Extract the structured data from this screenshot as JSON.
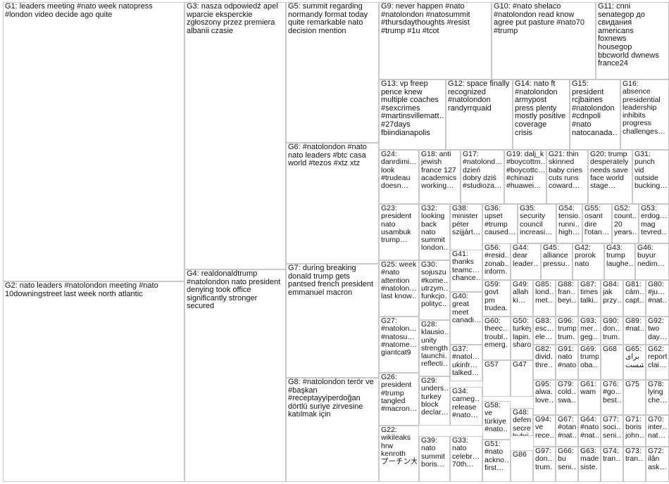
{
  "groups": [
    {
      "id": "G1",
      "lines": [
        "G1: leaders meeting #nato week natopress",
        "#london video decide ago quite"
      ]
    },
    {
      "id": "G2",
      "lines": [
        "G2: nato leaders #natolondon meeting #nato",
        "10downingstreet last week north atlantic"
      ]
    },
    {
      "id": "G3",
      "lines": [
        "G3: nasza odpowiedź apel",
        "wparcie eksperckie",
        "zgłoszony przez premiera",
        "albanii czasie"
      ]
    },
    {
      "id": "G4",
      "lines": [
        "G4: realdonaldtrump",
        "#natolondon nato president",
        "denying took office",
        "significantly stronger",
        "secured"
      ]
    },
    {
      "id": "G5",
      "lines": [
        "G5: summit regarding",
        "normandy format today",
        "quite remarkable nato",
        "decision mention"
      ]
    },
    {
      "id": "G6",
      "lines": [
        "G6: #natolondon #nato",
        "nato leaders #btc casa",
        "world #tezos #xtz xtz"
      ]
    },
    {
      "id": "G7",
      "lines": [
        "G7: during breaking",
        "donald trump gets",
        "pantsed french president",
        "emmanuel macron"
      ]
    },
    {
      "id": "G8",
      "lines": [
        "G8: #natolondon terör ve",
        "#başkan",
        "#receptayyiperdoğan",
        "dörtlü suriye zirvesine",
        "katılmak için"
      ]
    },
    {
      "id": "G9",
      "lines": [
        "G9: never happen #nato",
        "#natolondon #natosummit",
        "#thursdaythoughts #resist",
        "#trump #1u #tcot"
      ]
    },
    {
      "id": "G10",
      "lines": [
        "G10: #nato shelaco",
        "#natolondon read know",
        "agree put pasture #nato70",
        "#trump"
      ]
    },
    {
      "id": "G11",
      "lines": [
        "G11: cnni",
        "senategop до",
        "свидания",
        "americans",
        "foxnews",
        "housegop",
        "bbcworld dwnews",
        "france24"
      ]
    },
    {
      "id": "G13",
      "lines": [
        "G13: vp freep",
        "pence knew",
        "multiple coaches",
        "#sexcrimes",
        "#martinsvillematt…",
        "#27days",
        "fbiindianapolis"
      ]
    },
    {
      "id": "G12",
      "lines": [
        "G12: space finally",
        "recognized",
        "#natolondon",
        "randyrrquaid"
      ]
    },
    {
      "id": "G14",
      "lines": [
        "G14: nato ft",
        "#natolondon",
        "armypost",
        "press plenty",
        "mostly positive",
        "coverage",
        "crisis"
      ]
    },
    {
      "id": "G15",
      "lines": [
        "G15:",
        "president",
        "rcjbaines",
        "#natolondon",
        "#cdnpoli",
        "#nato",
        "natocanada…"
      ]
    },
    {
      "id": "G16",
      "lines": [
        "G16:",
        "absence",
        "presidential",
        "leadership",
        "inhibits",
        "progress",
        "challenges…"
      ]
    },
    {
      "id": "G24",
      "lines": [
        "G24:",
        "danrdimi…",
        "look",
        "#trudeau",
        "doesn…"
      ]
    },
    {
      "id": "G18",
      "lines": [
        "G18: anti",
        "jewish",
        "france 127",
        "academics",
        "working…"
      ]
    },
    {
      "id": "G17",
      "lines": [
        "G17:",
        "#natolond…",
        "dzień",
        "dobry dziś",
        "#studioza…"
      ]
    },
    {
      "id": "G19",
      "lines": [
        "G19: dalj_k",
        "#boycottm…",
        "#boycottc…",
        "#chinazi",
        "#huawei…"
      ]
    },
    {
      "id": "G21",
      "lines": [
        "G21: thin",
        "skinned",
        "baby cries",
        "cuts runs",
        "coward…"
      ]
    },
    {
      "id": "G20",
      "lines": [
        "G20: trump",
        "desperately",
        "needs save",
        "face world",
        "stage…"
      ]
    },
    {
      "id": "G31",
      "lines": [
        "G31:",
        "punch",
        "vid",
        "outside",
        "bucking…"
      ]
    },
    {
      "id": "G23",
      "lines": [
        "G23:",
        "president",
        "nato",
        "usambuk",
        "trump…"
      ]
    },
    {
      "id": "G32",
      "lines": [
        "G32:",
        "looking",
        "back",
        "nato",
        "summit",
        "london…"
      ]
    },
    {
      "id": "G38",
      "lines": [
        "G38:",
        "minister",
        "péter",
        "szijjárt…"
      ]
    },
    {
      "id": "G36",
      "lines": [
        "G36:",
        "upset",
        "#trump",
        "caused…"
      ]
    },
    {
      "id": "G35",
      "lines": [
        "G35:",
        "security",
        "council",
        "increasi…"
      ]
    },
    {
      "id": "G54",
      "lines": [
        "G54:",
        "tensio…",
        "runni…",
        "high…"
      ]
    },
    {
      "id": "G55",
      "lines": [
        "G55:",
        "osant",
        "dire",
        "l'otan…"
      ]
    },
    {
      "id": "G52",
      "lines": [
        "G52:",
        "count…",
        "20",
        "years…"
      ]
    },
    {
      "id": "G53",
      "lines": [
        "G53:",
        "erdog…",
        "mag",
        "tevred…"
      ]
    },
    {
      "id": "G41",
      "lines": [
        "G41:",
        "thanks",
        "teamc…",
        "chance…"
      ]
    },
    {
      "id": "G56",
      "lines": [
        "G56:",
        "#resid…",
        "zonab…",
        "inform…"
      ]
    },
    {
      "id": "G44",
      "lines": [
        "G44:",
        "dear",
        "leader…"
      ]
    },
    {
      "id": "G45",
      "lines": [
        "G45:",
        "alliance",
        "pressu…"
      ]
    },
    {
      "id": "G42",
      "lines": [
        "G42:",
        "prorok",
        "nato"
      ]
    },
    {
      "id": "G43",
      "lines": [
        "G43:",
        "trump",
        "laughe…"
      ]
    },
    {
      "id": "G46",
      "lines": [
        "G46:",
        "buyur",
        "nedim…"
      ]
    },
    {
      "id": "G25",
      "lines": [
        "G25: week",
        "#nato",
        "attention",
        "#natolon…",
        "last know…"
      ]
    },
    {
      "id": "G30",
      "lines": [
        "G30:",
        "sojuszu",
        "#kome…",
        "utrzym…",
        "funkcjo…",
        "polityc…"
      ]
    },
    {
      "id": "G40",
      "lines": [
        "G40:",
        "great",
        "meet",
        "canadi…"
      ]
    },
    {
      "id": "G59",
      "lines": [
        "G59:",
        "govt",
        "pm",
        "trudea…"
      ]
    },
    {
      "id": "G49",
      "lines": [
        "G49:",
        "allah",
        "ki…"
      ]
    },
    {
      "id": "G85",
      "lines": [
        "G85:",
        "lond…",
        "met…"
      ]
    },
    {
      "id": "G88",
      "lines": [
        "G88:",
        "fran…",
        "beyi…"
      ]
    },
    {
      "id": "G87",
      "lines": [
        "G87:",
        "times",
        "talki…"
      ]
    },
    {
      "id": "G84",
      "lines": [
        "G84:",
        "jak",
        "przy…"
      ]
    },
    {
      "id": "G81",
      "lines": [
        "G81:",
        "cám…",
        "capt…"
      ]
    },
    {
      "id": "G80",
      "lines": [
        "G80:",
        "#ju…",
        "#nat…"
      ]
    },
    {
      "id": "G27",
      "lines": [
        "G27:",
        "#natolon…",
        "#natosu…",
        "#natome…",
        "giantcat9"
      ]
    },
    {
      "id": "G28",
      "lines": [
        "G28:",
        "klausio…",
        "unity",
        "strength",
        "launchi…",
        "reflecti…"
      ]
    },
    {
      "id": "G60",
      "lines": [
        "G60:",
        "theec…",
        "troubl…",
        "emerg…"
      ]
    },
    {
      "id": "G50",
      "lines": [
        "G50:",
        "turkey",
        "lapin…",
        "sharo…"
      ]
    },
    {
      "id": "G83",
      "lines": [
        "G83:",
        "esc…",
        "ele…"
      ]
    },
    {
      "id": "G96",
      "lines": [
        "G96:",
        "trump",
        "trum…"
      ]
    },
    {
      "id": "G93",
      "lines": [
        "G93:",
        "mer…",
        "geg…"
      ]
    },
    {
      "id": "G90",
      "lines": [
        "G90:",
        "don…",
        "trum…"
      ]
    },
    {
      "id": "G89",
      "lines": [
        "G89:",
        "#nat…"
      ]
    },
    {
      "id": "G92",
      "lines": [
        "G92:",
        "two",
        "day…"
      ]
    },
    {
      "id": "G37",
      "lines": [
        "G37:",
        "#natol…",
        "ukinfr…",
        "talked…"
      ]
    },
    {
      "id": "G57",
      "lines": [
        "G57"
      ]
    },
    {
      "id": "G47",
      "lines": [
        "G47"
      ]
    },
    {
      "id": "G82",
      "lines": [
        "G82:",
        "divid…",
        "thre…"
      ]
    },
    {
      "id": "G91",
      "lines": [
        "G91:",
        "nato",
        "#nato…"
      ]
    },
    {
      "id": "G69",
      "lines": [
        "G69:",
        "trump",
        "oba…"
      ]
    },
    {
      "id": "G68",
      "lines": [
        "G68"
      ]
    },
    {
      "id": "G65",
      "lines": [
        "G65:",
        "برای",
        "نشست"
      ]
    },
    {
      "id": "G62",
      "lines": [
        "G62:",
        "report",
        "clai…"
      ]
    },
    {
      "id": "G26",
      "lines": [
        "G26:",
        "president",
        "#trump",
        "tangled",
        "#macron…"
      ]
    },
    {
      "id": "G29",
      "lines": [
        "G29:",
        "unders…",
        "turkey",
        "block",
        "declar…"
      ]
    },
    {
      "id": "G34",
      "lines": [
        "G34:",
        "carneg…",
        "release",
        "#nato…"
      ]
    },
    {
      "id": "G58",
      "lines": [
        "G58:",
        "ve",
        "türkiye",
        "#nato…"
      ]
    },
    {
      "id": "G48",
      "lines": [
        "G48:",
        "defen…",
        "secre…",
        "hybri…"
      ]
    },
    {
      "id": "G95",
      "lines": [
        "G95:",
        "alwa…",
        "love…"
      ]
    },
    {
      "id": "G79",
      "lines": [
        "G79:",
        "cold…",
        "swa…"
      ]
    },
    {
      "id": "G61",
      "lines": [
        "G61:",
        "wam"
      ]
    },
    {
      "id": "G76",
      "lines": [
        "G76:",
        "#go…",
        "best…"
      ]
    },
    {
      "id": "G75",
      "lines": [
        "G75"
      ]
    },
    {
      "id": "G78",
      "lines": [
        "G78:",
        "lying",
        "che…"
      ]
    },
    {
      "id": "G22",
      "lines": [
        "G22:",
        "wikileaks",
        "hrw",
        "kenroth",
        "プーチン大…"
      ]
    },
    {
      "id": "G39",
      "lines": [
        "G39:",
        "nato",
        "summit",
        "boris…"
      ]
    },
    {
      "id": "G33",
      "lines": [
        "G33:",
        "nato",
        "celebr…",
        "70th…"
      ]
    },
    {
      "id": "G51",
      "lines": [
        "G51:",
        "#nato",
        "ackno…",
        "first…"
      ]
    },
    {
      "id": "G86",
      "lines": [
        "G86"
      ]
    },
    {
      "id": "G94",
      "lines": [
        "G94:",
        "ve",
        "rece…"
      ]
    },
    {
      "id": "G67",
      "lines": [
        "G67:",
        "#otan",
        "#nat…"
      ]
    },
    {
      "id": "G64",
      "lines": [
        "G64:",
        "#nato",
        "#nat…"
      ]
    },
    {
      "id": "G77",
      "lines": [
        "G77:",
        "soci…",
        "seni…"
      ]
    },
    {
      "id": "G71",
      "lines": [
        "G71:",
        "boris",
        "john…"
      ]
    },
    {
      "id": "G70",
      "lines": [
        "G70:",
        "inter…",
        "nat…"
      ]
    },
    {
      "id": "G97",
      "lines": [
        "G97:",
        "don…",
        "trum…"
      ]
    },
    {
      "id": "G66",
      "lines": [
        "G66:",
        "bu",
        "seni…"
      ]
    },
    {
      "id": "G63",
      "lines": [
        "G63:",
        "made",
        "siste…"
      ]
    },
    {
      "id": "G74",
      "lines": [
        "G74:",
        "tran…"
      ]
    },
    {
      "id": "G73",
      "lines": [
        "G73:",
        "tran…"
      ]
    },
    {
      "id": "G72",
      "lines": [
        "G72:",
        "ilân",
        "ask…"
      ]
    }
  ]
}
